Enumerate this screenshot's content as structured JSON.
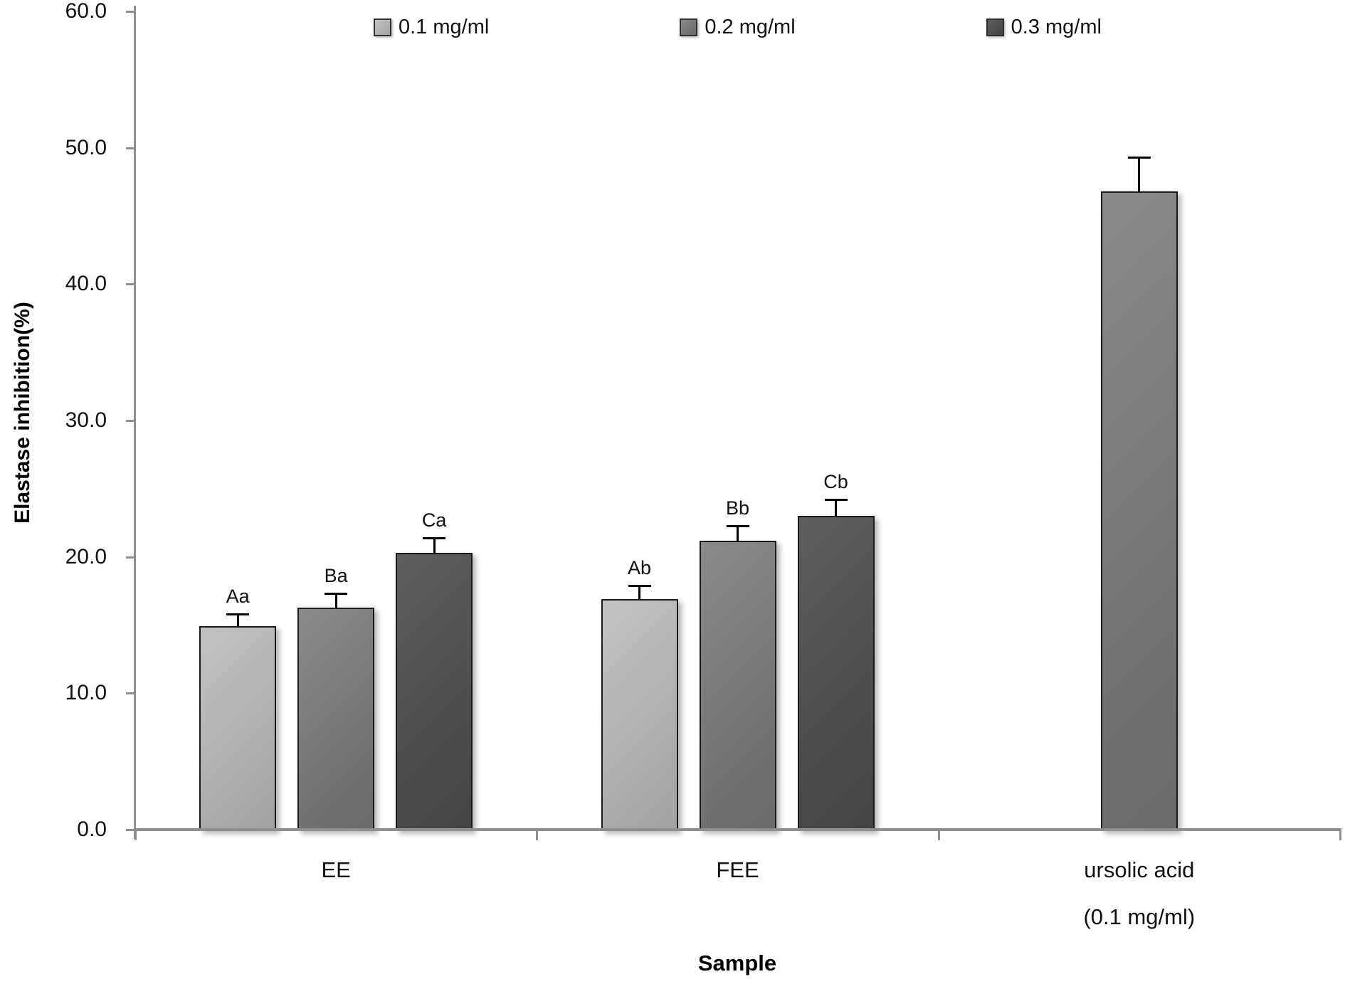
{
  "page": {
    "background": "#ffffff"
  },
  "chart_data": {
    "type": "bar",
    "title": "",
    "xlabel": "Sample",
    "ylabel": "Elastase inhibition(%)",
    "ylim": [
      0,
      60
    ],
    "ytick_step": 10,
    "ytick_decimals": 1,
    "grid": false,
    "legend_position": "top-center",
    "error_bars": "upper-only",
    "categories": [
      "EE",
      "FEE",
      "ursolic acid (0.1 mg/ml)"
    ],
    "category_lines": [
      [
        "EE"
      ],
      [
        "FEE"
      ],
      [
        "ursolic acid",
        "(0.1 mg/ml)"
      ]
    ],
    "series": [
      {
        "name": "0.1 mg/ml",
        "color_light": "#c3c3c3",
        "color_dark": "#a2a2a2",
        "values": [
          14.9,
          16.9,
          null
        ],
        "errors": [
          0.9,
          1.0,
          null
        ],
        "point_labels": [
          "Aa",
          "Ab",
          ""
        ]
      },
      {
        "name": "0.2 mg/ml",
        "color_light": "#8a8a8a",
        "color_dark": "#696969",
        "values": [
          16.3,
          21.2,
          46.8
        ],
        "errors": [
          1.0,
          1.1,
          2.5
        ],
        "point_labels": [
          "Ba",
          "Bb",
          ""
        ]
      },
      {
        "name": "0.3 mg/ml",
        "color_light": "#5e5e5e",
        "color_dark": "#434343",
        "values": [
          20.3,
          23.0,
          null
        ],
        "errors": [
          1.1,
          1.2,
          null
        ],
        "point_labels": [
          "Ca",
          "Cb",
          ""
        ]
      }
    ],
    "colors": {
      "axis": "#8f8f8f",
      "bar_border": "#1a1a1a",
      "error_bar": "#000000",
      "text": "#111111"
    }
  }
}
